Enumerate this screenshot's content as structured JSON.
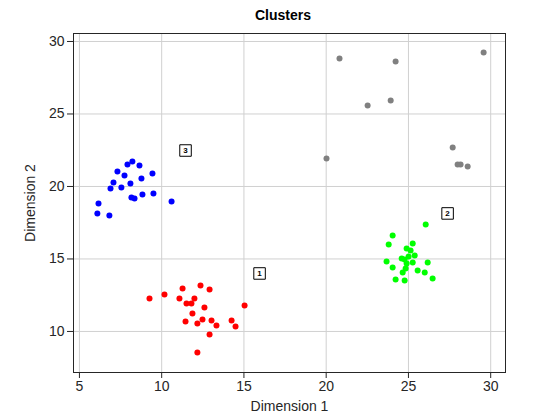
{
  "chart_data": {
    "type": "scatter",
    "title": "Clusters",
    "x_label": "Dimension 1",
    "y_label": "Dimension 2",
    "xlim": [
      4.64,
      30.9
    ],
    "ylim": [
      7.17,
      30.55
    ],
    "xticks": [
      5,
      10,
      15,
      20,
      25,
      30
    ],
    "yticks": [
      10,
      15,
      20,
      25,
      30
    ],
    "grid": true,
    "marker": "circle",
    "series": [
      {
        "color": "#0000ff",
        "x": [
          6.16,
          6.09,
          6.82,
          6.89,
          7.07,
          7.31,
          7.55,
          7.74,
          7.92,
          8.22,
          8.1,
          8.16,
          8.35,
          8.65,
          8.77,
          8.83,
          9.44,
          9.5,
          10.6
        ],
        "y": [
          18.83,
          18.14,
          18.0,
          19.86,
          20.28,
          21.03,
          19.93,
          20.76,
          21.52,
          21.72,
          20.21,
          19.24,
          19.17,
          21.45,
          20.55,
          19.45,
          20.9,
          19.52,
          18.97
        ]
      },
      {
        "color": "#ff0000",
        "x": [
          9.26,
          10.17,
          11.27,
          11.08,
          11.51,
          11.45,
          11.81,
          11.99,
          11.87,
          12.36,
          12.91,
          12.17,
          12.48,
          13.03,
          12.91,
          13.33,
          12.17,
          14.25,
          14.49,
          15.04,
          12.6
        ],
        "y": [
          12.28,
          12.55,
          12.97,
          12.28,
          11.93,
          10.69,
          11.93,
          12.28,
          11.24,
          13.17,
          12.9,
          10.55,
          10.83,
          10.76,
          9.79,
          10.41,
          8.55,
          10.76,
          10.34,
          11.79,
          11.65
        ]
      },
      {
        "color": "#00ff00",
        "x": [
          24.04,
          23.8,
          23.67,
          24.04,
          24.22,
          24.59,
          24.77,
          24.65,
          24.77,
          24.89,
          24.89,
          25.13,
          25.26,
          25.38,
          25.26,
          25.56,
          25.99,
          26.17,
          26.05,
          26.47,
          24.83,
          25.01
        ],
        "y": [
          16.62,
          16.0,
          14.83,
          14.41,
          13.59,
          15.03,
          14.97,
          14.07,
          13.52,
          14.69,
          15.72,
          15.59,
          16.07,
          15.24,
          14.76,
          14.21,
          14.07,
          14.76,
          17.38,
          13.66,
          14.34,
          15.17
        ]
      },
      {
        "color": "#808080",
        "x": [
          20.02,
          20.81,
          22.52,
          23.92,
          24.22,
          27.69,
          27.99,
          28.17,
          28.6,
          29.57
        ],
        "y": [
          21.93,
          28.83,
          25.59,
          25.93,
          28.62,
          22.69,
          21.52,
          21.52,
          21.38,
          29.24
        ]
      }
    ],
    "annotations": [
      {
        "text": "1",
        "x": 15.95,
        "y": 14.0
      },
      {
        "text": "2",
        "x": 27.38,
        "y": 18.14
      },
      {
        "text": "3",
        "x": 11.45,
        "y": 22.48
      }
    ]
  }
}
